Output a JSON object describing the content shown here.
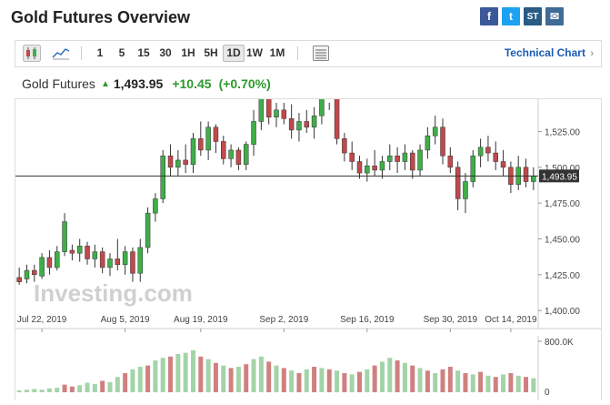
{
  "header": {
    "title": "Gold Futures Overview"
  },
  "share": [
    {
      "icon": "facebook-icon",
      "glyph": "f"
    },
    {
      "icon": "twitter-icon",
      "glyph": "t"
    },
    {
      "icon": "stocktwits-icon",
      "glyph": "ST"
    },
    {
      "icon": "email-icon",
      "glyph": "✉"
    }
  ],
  "toolbar": {
    "intervals": [
      "1",
      "5",
      "15",
      "30",
      "1H",
      "5H",
      "1D",
      "1W",
      "1M"
    ],
    "selected_interval": "1D",
    "tech_chart_label": "Technical Chart"
  },
  "quote": {
    "name": "Gold Futures",
    "last": "1,493.95",
    "change": "+10.45",
    "change_pct": "(+0.70%)"
  },
  "colors": {
    "up": "#3fae49",
    "down": "#c0494b",
    "vol_up": "#a3d4a8",
    "vol_down": "#d08080",
    "accent": "#2d9a2d"
  },
  "chart_data": {
    "type": "candlestick",
    "x_tick_labels": [
      "Jul 22, 2019",
      "Aug 5, 2019",
      "Aug 19, 2019",
      "Sep 2, 2019",
      "Sep 16, 2019",
      "Sep 30, 2019",
      "Oct 14, 2019"
    ],
    "y_tick_labels": [
      "1,525.00",
      "1,500.00",
      "1,475.00",
      "1,450.00",
      "1,425.00",
      "1,400.00"
    ],
    "y_ticks": [
      1525,
      1500,
      1475,
      1450,
      1425,
      1400
    ],
    "ylim": [
      1395,
      1545
    ],
    "last_price_label": "1,493.95",
    "last_price": 1493.95,
    "volume_axis_labels": [
      "800.0K",
      "0"
    ],
    "volume_max": 800000,
    "watermark": "Investing.com",
    "candles": [
      [
        1423,
        1430,
        1418,
        1420
      ],
      [
        1422,
        1432,
        1419,
        1428
      ],
      [
        1428,
        1432,
        1420,
        1425
      ],
      [
        1424,
        1440,
        1422,
        1437
      ],
      [
        1437,
        1442,
        1425,
        1430
      ],
      [
        1430,
        1445,
        1428,
        1441
      ],
      [
        1441,
        1468,
        1438,
        1462
      ],
      [
        1442,
        1446,
        1435,
        1440
      ],
      [
        1440,
        1450,
        1434,
        1445
      ],
      [
        1445,
        1448,
        1432,
        1436
      ],
      [
        1436,
        1446,
        1430,
        1441
      ],
      [
        1441,
        1444,
        1426,
        1430
      ],
      [
        1430,
        1440,
        1424,
        1436
      ],
      [
        1436,
        1450,
        1428,
        1432
      ],
      [
        1432,
        1445,
        1425,
        1441
      ],
      [
        1441,
        1444,
        1420,
        1426
      ],
      [
        1426,
        1450,
        1420,
        1444
      ],
      [
        1444,
        1472,
        1440,
        1468
      ],
      [
        1468,
        1482,
        1462,
        1478
      ],
      [
        1478,
        1512,
        1475,
        1508
      ],
      [
        1508,
        1516,
        1494,
        1500
      ],
      [
        1500,
        1512,
        1494,
        1505
      ],
      [
        1505,
        1516,
        1496,
        1502
      ],
      [
        1502,
        1524,
        1496,
        1520
      ],
      [
        1520,
        1532,
        1508,
        1512
      ],
      [
        1512,
        1532,
        1505,
        1528
      ],
      [
        1528,
        1530,
        1510,
        1518
      ],
      [
        1518,
        1522,
        1502,
        1506
      ],
      [
        1506,
        1516,
        1500,
        1512
      ],
      [
        1512,
        1514,
        1498,
        1502
      ],
      [
        1502,
        1518,
        1498,
        1516
      ],
      [
        1516,
        1540,
        1508,
        1532
      ],
      [
        1532,
        1556,
        1526,
        1550
      ],
      [
        1550,
        1560,
        1530,
        1535
      ],
      [
        1535,
        1548,
        1528,
        1540
      ],
      [
        1540,
        1552,
        1530,
        1534
      ],
      [
        1534,
        1544,
        1520,
        1526
      ],
      [
        1526,
        1538,
        1518,
        1532
      ],
      [
        1532,
        1540,
        1524,
        1528
      ],
      [
        1528,
        1542,
        1520,
        1536
      ],
      [
        1536,
        1554,
        1530,
        1550
      ],
      [
        1550,
        1562,
        1540,
        1556
      ],
      [
        1556,
        1558,
        1516,
        1520
      ],
      [
        1520,
        1524,
        1504,
        1510
      ],
      [
        1510,
        1518,
        1498,
        1504
      ],
      [
        1504,
        1508,
        1492,
        1496
      ],
      [
        1496,
        1506,
        1490,
        1501
      ],
      [
        1501,
        1512,
        1494,
        1498
      ],
      [
        1498,
        1508,
        1492,
        1504
      ],
      [
        1504,
        1516,
        1498,
        1508
      ],
      [
        1508,
        1514,
        1496,
        1504
      ],
      [
        1504,
        1516,
        1498,
        1510
      ],
      [
        1510,
        1512,
        1492,
        1498
      ],
      [
        1498,
        1516,
        1494,
        1512
      ],
      [
        1512,
        1528,
        1506,
        1522
      ],
      [
        1522,
        1536,
        1516,
        1528
      ],
      [
        1528,
        1534,
        1502,
        1508
      ],
      [
        1508,
        1514,
        1496,
        1500
      ],
      [
        1500,
        1504,
        1470,
        1478
      ],
      [
        1478,
        1496,
        1468,
        1490
      ],
      [
        1490,
        1512,
        1486,
        1508
      ],
      [
        1508,
        1520,
        1500,
        1514
      ],
      [
        1514,
        1522,
        1504,
        1510
      ],
      [
        1510,
        1518,
        1498,
        1504
      ],
      [
        1504,
        1512,
        1494,
        1500
      ],
      [
        1500,
        1504,
        1482,
        1488
      ],
      [
        1488,
        1508,
        1484,
        1500
      ],
      [
        1500,
        1506,
        1486,
        1490
      ],
      [
        1490,
        1500,
        1484,
        1494
      ]
    ],
    "volumes": [
      [
        30000,
        "up"
      ],
      [
        40000,
        "up"
      ],
      [
        50000,
        "up"
      ],
      [
        40000,
        "up"
      ],
      [
        60000,
        "up"
      ],
      [
        70000,
        "up"
      ],
      [
        120000,
        "down"
      ],
      [
        90000,
        "down"
      ],
      [
        110000,
        "up"
      ],
      [
        150000,
        "up"
      ],
      [
        130000,
        "up"
      ],
      [
        180000,
        "down"
      ],
      [
        160000,
        "up"
      ],
      [
        240000,
        "up"
      ],
      [
        300000,
        "down"
      ],
      [
        360000,
        "up"
      ],
      [
        400000,
        "up"
      ],
      [
        420000,
        "down"
      ],
      [
        500000,
        "up"
      ],
      [
        540000,
        "up"
      ],
      [
        560000,
        "down"
      ],
      [
        600000,
        "up"
      ],
      [
        620000,
        "up"
      ],
      [
        660000,
        "up"
      ],
      [
        560000,
        "down"
      ],
      [
        520000,
        "up"
      ],
      [
        460000,
        "down"
      ],
      [
        420000,
        "up"
      ],
      [
        380000,
        "down"
      ],
      [
        400000,
        "up"
      ],
      [
        440000,
        "down"
      ],
      [
        520000,
        "up"
      ],
      [
        560000,
        "up"
      ],
      [
        480000,
        "down"
      ],
      [
        420000,
        "up"
      ],
      [
        380000,
        "down"
      ],
      [
        340000,
        "up"
      ],
      [
        300000,
        "down"
      ],
      [
        360000,
        "up"
      ],
      [
        400000,
        "down"
      ],
      [
        380000,
        "up"
      ],
      [
        360000,
        "down"
      ],
      [
        340000,
        "up"
      ],
      [
        300000,
        "down"
      ],
      [
        280000,
        "up"
      ],
      [
        320000,
        "down"
      ],
      [
        360000,
        "up"
      ],
      [
        420000,
        "down"
      ],
      [
        480000,
        "up"
      ],
      [
        540000,
        "up"
      ],
      [
        500000,
        "down"
      ],
      [
        460000,
        "up"
      ],
      [
        420000,
        "down"
      ],
      [
        380000,
        "up"
      ],
      [
        340000,
        "down"
      ],
      [
        300000,
        "up"
      ],
      [
        360000,
        "down"
      ],
      [
        400000,
        "down"
      ],
      [
        340000,
        "up"
      ],
      [
        300000,
        "down"
      ],
      [
        280000,
        "up"
      ],
      [
        320000,
        "down"
      ],
      [
        260000,
        "up"
      ],
      [
        240000,
        "down"
      ],
      [
        280000,
        "up"
      ],
      [
        300000,
        "down"
      ],
      [
        260000,
        "up"
      ],
      [
        240000,
        "down"
      ],
      [
        220000,
        "up"
      ]
    ]
  }
}
